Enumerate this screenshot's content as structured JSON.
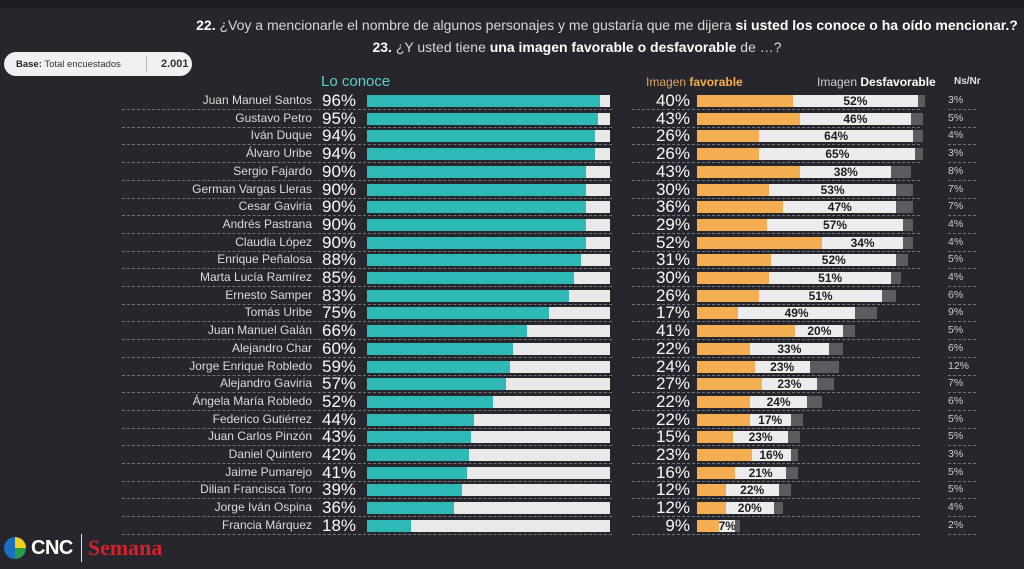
{
  "header": {
    "q1_num": "22.",
    "q1_text": " ¿Voy a mencionarle el nombre de algunos personajes y me gustaría que me dijera ",
    "q1_bold": "si usted los conoce o ha oído mencionar.?",
    "q2_num": "23.",
    "q2_text": " ¿Y usted tiene ",
    "q2_bold": "una imagen favorable o desfavorable",
    "q2_end": " de …?"
  },
  "base": {
    "label_bold": "Base:",
    "label": " Total encuestados",
    "value": "2.001"
  },
  "columns": {
    "conoce": "Lo conoce",
    "fav_prefix": "Imagen ",
    "fav_bold": "favorable",
    "desf_prefix": "Imagen ",
    "desf_bold": "Desfavorable",
    "nsnr": "Ns/Nr"
  },
  "colors": {
    "conoce": "#2eb8b6",
    "favorable": "#f3ae52",
    "desfavorable": "#ececec",
    "nsnr": "#5c5c60",
    "background": "#26262c"
  },
  "logos": {
    "cnc": "CNC",
    "semana": "Semana"
  },
  "chart_data": {
    "type": "bar",
    "title": "22. ¿Voy a mencionarle el nombre de algunos personajes y me gustaría que me dijera si usted los conoce o ha oído mencionar.? / 23. ¿Y usted tiene una imagen favorable o desfavorable de …?",
    "categories": [
      "Juan Manuel Santos",
      "Gustavo Petro",
      "Iván Duque",
      "Álvaro Uribe",
      "Sergio Fajardo",
      "German Vargas Lleras",
      "Cesar Gaviria",
      "Andrés Pastrana",
      "Claudia López",
      "Enrique Peñalosa",
      "Marta Lucía Ramírez",
      "Ernesto Samper",
      "Tomás Uribe",
      "Juan Manuel Galán",
      "Alejandro Char",
      "Jorge Enrique Robledo",
      "Alejandro Gaviria",
      "Ángela María Robledo",
      "Federico Gutiérrez",
      "Juan Carlos Pinzón",
      "Daniel Quintero",
      "Jaime Pumarejo",
      "Dilian Francisca Toro",
      "Jorge Iván Ospina",
      "Francia Márquez"
    ],
    "series": [
      {
        "name": "Lo conoce",
        "values": [
          96,
          95,
          94,
          94,
          90,
          90,
          90,
          90,
          90,
          88,
          85,
          83,
          75,
          66,
          60,
          59,
          57,
          52,
          44,
          43,
          42,
          41,
          39,
          36,
          18
        ]
      },
      {
        "name": "Imagen favorable",
        "values": [
          40,
          43,
          26,
          26,
          43,
          30,
          36,
          29,
          52,
          31,
          30,
          26,
          17,
          41,
          22,
          24,
          27,
          22,
          22,
          15,
          23,
          16,
          12,
          12,
          9
        ]
      },
      {
        "name": "Imagen Desfavorable",
        "values": [
          52,
          46,
          64,
          65,
          38,
          53,
          47,
          57,
          34,
          52,
          51,
          51,
          49,
          20,
          33,
          23,
          23,
          24,
          17,
          23,
          16,
          21,
          22,
          20,
          7
        ]
      },
      {
        "name": "Ns/Nr",
        "values": [
          3,
          5,
          4,
          3,
          8,
          7,
          7,
          4,
          4,
          5,
          4,
          6,
          9,
          5,
          6,
          12,
          7,
          6,
          5,
          5,
          3,
          5,
          5,
          4,
          2
        ]
      }
    ],
    "unit": "%",
    "xlim": [
      0,
      100
    ],
    "legend": "top",
    "orientation": "horizontal"
  }
}
